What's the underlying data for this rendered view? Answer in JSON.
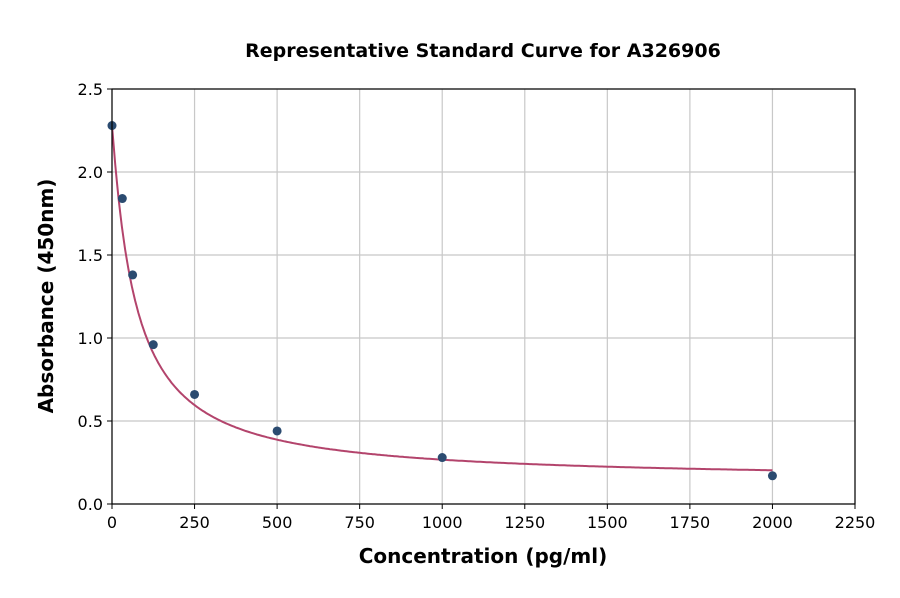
{
  "chart_data": {
    "type": "scatter",
    "title": "Representative Standard Curve for A326906",
    "xlabel": "Concentration (pg/ml)",
    "ylabel": "Absorbance (450nm)",
    "xlim": [
      0,
      2250
    ],
    "ylim": [
      0,
      2.5
    ],
    "xticks": [
      "0",
      "250",
      "500",
      "750",
      "1000",
      "1250",
      "1500",
      "1750",
      "2000",
      "2250"
    ],
    "yticks": [
      "0.0",
      "0.5",
      "1.0",
      "1.5",
      "2.0",
      "2.5"
    ],
    "grid": true,
    "x": [
      0,
      31.25,
      62.5,
      125,
      250,
      500,
      1000,
      2000
    ],
    "y": [
      2.28,
      1.84,
      1.38,
      0.96,
      0.66,
      0.44,
      0.28,
      0.17
    ],
    "fit_curve": true,
    "colors": {
      "points": "#2b4b70",
      "curve": "#b3446c",
      "grid": "#c8c8c8"
    }
  }
}
